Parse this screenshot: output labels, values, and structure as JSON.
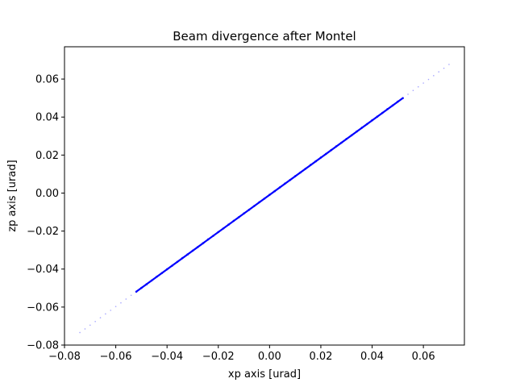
{
  "chart_data": {
    "type": "scatter",
    "title": "Beam divergence after Montel",
    "xlabel": "xp axis [urad]",
    "ylabel": "zp axis [urad]",
    "xlim": [
      -0.08,
      0.076
    ],
    "ylim": [
      -0.08,
      0.077
    ],
    "x_ticks": [
      "−0.08",
      "−0.06",
      "−0.04",
      "−0.02",
      "0.00",
      "0.02",
      "0.04",
      "0.06"
    ],
    "y_ticks": [
      "−0.08",
      "−0.06",
      "−0.04",
      "−0.02",
      "0.00",
      "0.02",
      "0.04",
      "0.06"
    ],
    "grid": false,
    "legend": "none",
    "marker_color": "#0000ff",
    "series": [
      {
        "points": {
          "x": [
            -0.074,
            -0.072,
            -0.07,
            -0.068,
            -0.066,
            -0.064,
            -0.062,
            -0.06,
            -0.058,
            -0.056,
            -0.054,
            -0.052,
            -0.05,
            -0.048,
            -0.046,
            -0.044,
            -0.042,
            -0.04,
            -0.038,
            -0.036,
            -0.034,
            -0.032,
            -0.03,
            -0.028,
            -0.026,
            -0.024,
            -0.022,
            -0.02,
            -0.018,
            -0.016,
            -0.014,
            -0.012,
            -0.01,
            -0.008,
            -0.006,
            -0.004,
            -0.002,
            0.0,
            0.002,
            0.004,
            0.006,
            0.008,
            0.01,
            0.012,
            0.014,
            0.016,
            0.018,
            0.02,
            0.022,
            0.024,
            0.026,
            0.028,
            0.03,
            0.032,
            0.034,
            0.036,
            0.038,
            0.04,
            0.042,
            0.044,
            0.046,
            0.048,
            0.05,
            0.052,
            0.054,
            0.056,
            0.058,
            0.06,
            0.062,
            0.064,
            0.066,
            0.068,
            0.07
          ],
          "y": [
            -0.0734,
            -0.0715,
            -0.0695,
            -0.0676,
            -0.0656,
            -0.0636,
            -0.0617,
            -0.0597,
            -0.0578,
            -0.0558,
            -0.0538,
            -0.0519,
            -0.0499,
            -0.048,
            -0.046,
            -0.044,
            -0.0421,
            -0.0401,
            -0.0382,
            -0.0362,
            -0.0342,
            -0.0323,
            -0.0303,
            -0.0284,
            -0.0264,
            -0.0244,
            -0.0225,
            -0.0205,
            -0.0186,
            -0.0166,
            -0.0146,
            -0.0127,
            -0.0107,
            -0.0088,
            -0.0068,
            -0.0048,
            -0.0029,
            -0.0009,
            0.001,
            0.003,
            0.005,
            0.0069,
            0.0089,
            0.0108,
            0.0128,
            0.0148,
            0.0167,
            0.0187,
            0.0206,
            0.0226,
            0.0246,
            0.0265,
            0.0285,
            0.0304,
            0.0324,
            0.0344,
            0.0363,
            0.0383,
            0.0402,
            0.0422,
            0.0442,
            0.0461,
            0.0481,
            0.05,
            0.052,
            0.054,
            0.0559,
            0.0579,
            0.0598,
            0.0618,
            0.0638,
            0.0657,
            0.0677
          ]
        },
        "dense_range_x": [
          -0.052,
          0.052
        ]
      }
    ]
  }
}
